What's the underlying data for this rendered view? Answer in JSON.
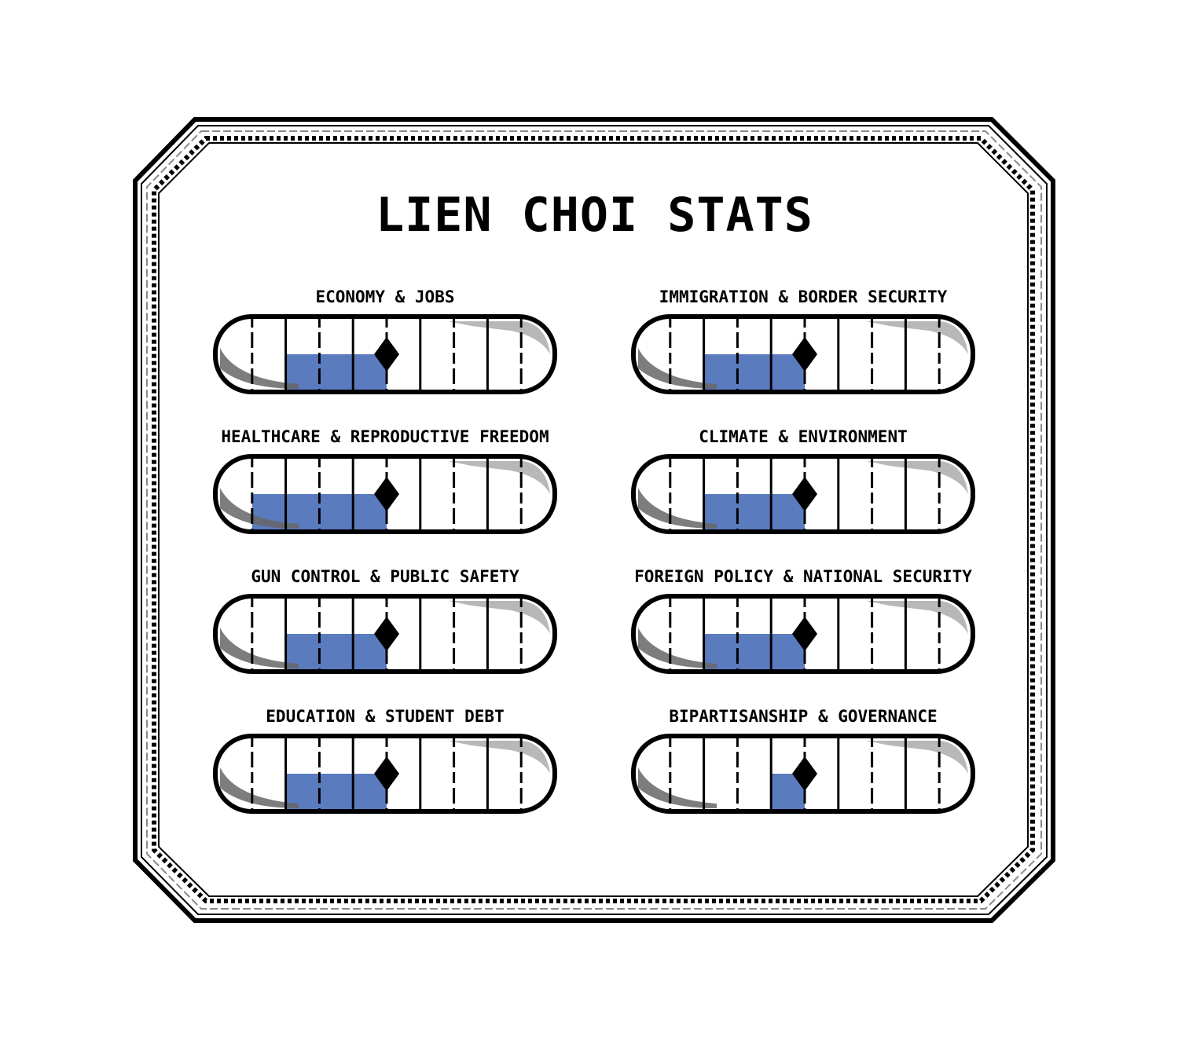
{
  "title": "LIEN CHOI STATS",
  "colors": {
    "fill": "#5b7bbf",
    "outline": "#000000",
    "shadow_dark": "#666666",
    "shadow_light": "#b0b0b0",
    "background": "#ffffff"
  },
  "gauge_segments": 10,
  "stats": [
    {
      "label": "ECONOMY & JOBS",
      "fill_start": 0.2,
      "fill_end": 0.5
    },
    {
      "label": "IMMIGRATION & BORDER SECURITY",
      "fill_start": 0.2,
      "fill_end": 0.5
    },
    {
      "label": "HEALTHCARE & REPRODUCTIVE FREEDOM",
      "fill_start": 0.1,
      "fill_end": 0.5
    },
    {
      "label": "CLIMATE & ENVIRONMENT",
      "fill_start": 0.2,
      "fill_end": 0.5
    },
    {
      "label": "GUN CONTROL & PUBLIC SAFETY",
      "fill_start": 0.2,
      "fill_end": 0.5
    },
    {
      "label": "FOREIGN POLICY & NATIONAL SECURITY",
      "fill_start": 0.2,
      "fill_end": 0.5
    },
    {
      "label": "EDUCATION & STUDENT DEBT",
      "fill_start": 0.2,
      "fill_end": 0.5
    },
    {
      "label": "BIPARTISANSHIP & GOVERNANCE",
      "fill_start": 0.4,
      "fill_end": 0.5
    }
  ]
}
